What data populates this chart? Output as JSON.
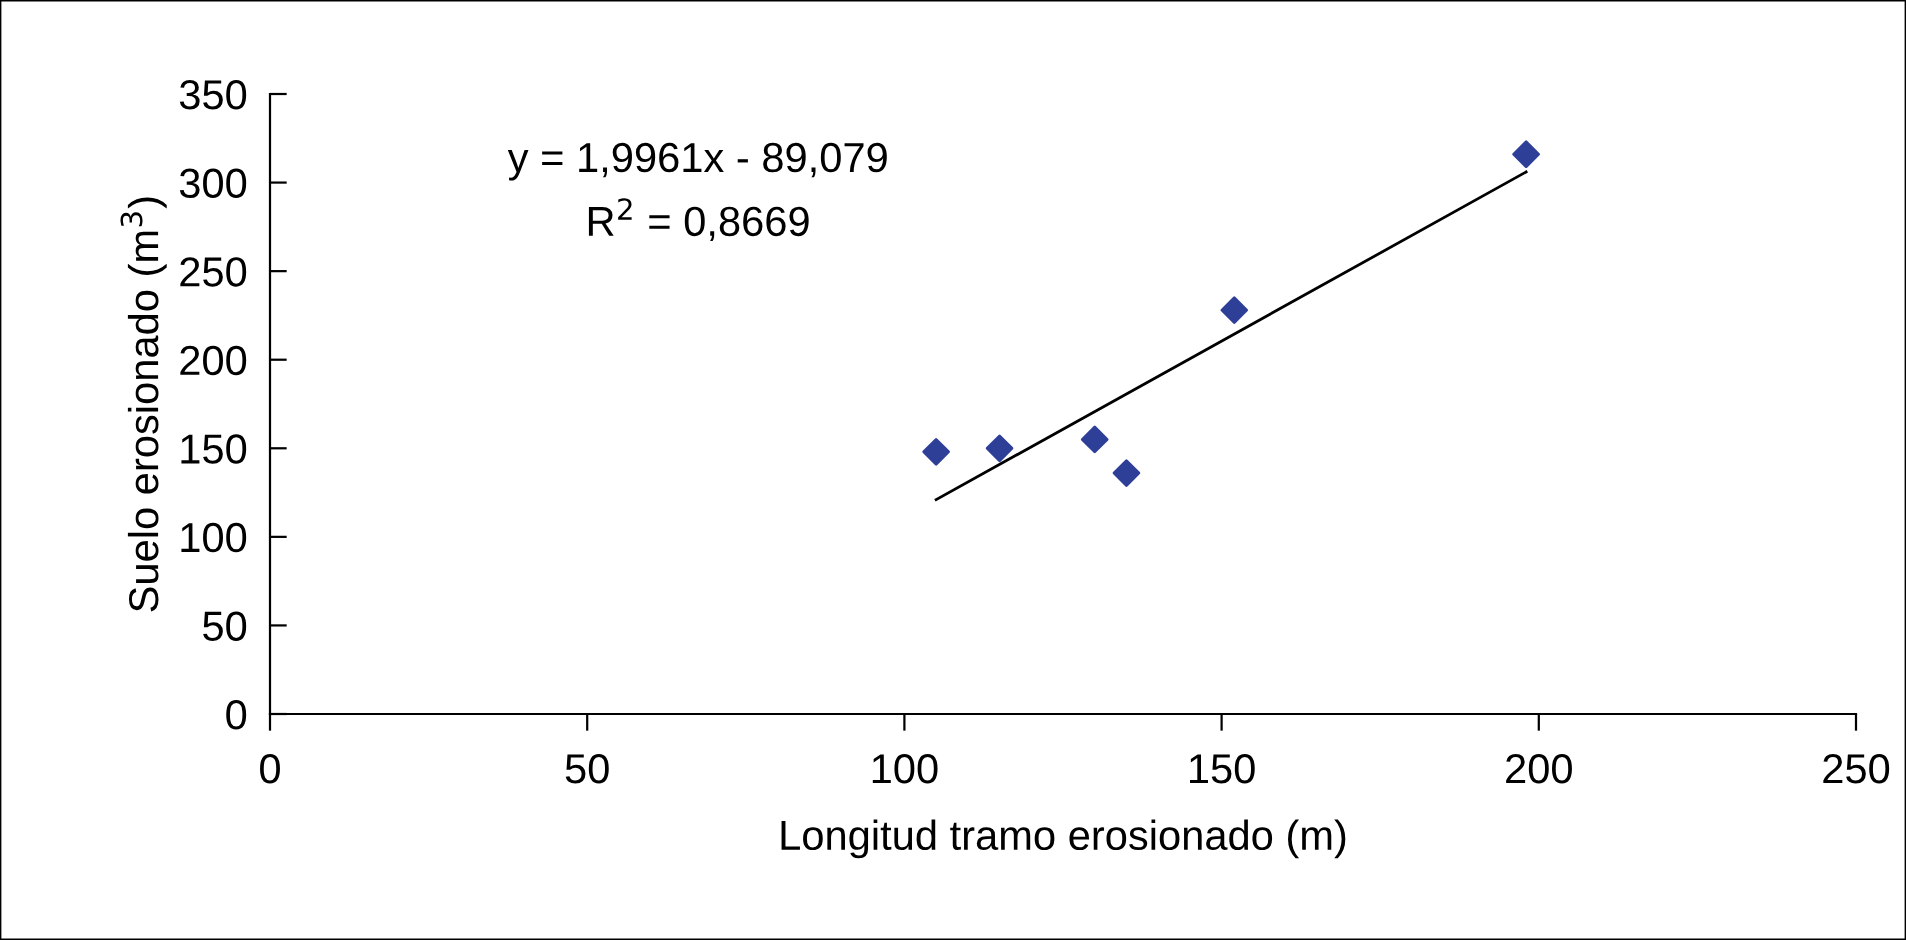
{
  "chart_data": {
    "type": "scatter",
    "xlabel": "Longitud tramo erosionado (m)",
    "ylabel": "Suelo erosionado (m$^{3}$)",
    "xlim": [
      0,
      250
    ],
    "ylim": [
      0,
      350
    ],
    "xticks": [
      0,
      50,
      100,
      150,
      200,
      250
    ],
    "yticks": [
      0,
      50,
      100,
      150,
      200,
      250,
      300,
      350
    ],
    "grid": false,
    "legend": false,
    "marker": "diamond",
    "series": [
      {
        "color": "#2e3f98",
        "x": [
          105,
          115,
          130,
          135,
          152,
          198
        ],
        "values": [
          148,
          150,
          155,
          136,
          228,
          316
        ]
      },
      {
        "type": "line",
        "color": "#000000",
        "x": [
          105,
          198
        ],
        "values": [
          121,
          306
        ],
        "marker": "none"
      }
    ],
    "annotations": [
      {
        "text": "y = 1,9961x - 89,079\nR$^{2}$ = 0,8669"
      }
    ]
  }
}
